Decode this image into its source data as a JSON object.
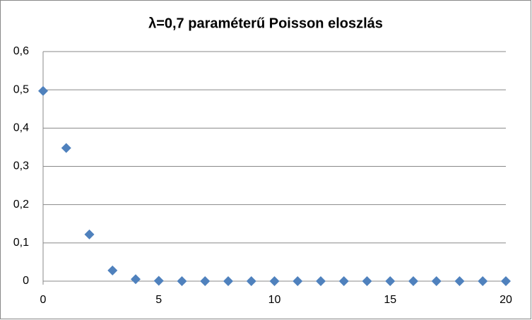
{
  "chart_data": {
    "type": "scatter",
    "title": "λ=0,7 paraméterű Poisson eloszlás",
    "x": [
      0,
      1,
      2,
      3,
      4,
      5,
      6,
      7,
      8,
      9,
      10,
      11,
      12,
      13,
      14,
      15,
      16,
      17,
      18,
      19,
      20
    ],
    "values": [
      0.497,
      0.348,
      0.122,
      0.028,
      0.005,
      0.001,
      0,
      0,
      0,
      0,
      0,
      0,
      0,
      0,
      0,
      0,
      0,
      0,
      0,
      0,
      0
    ],
    "color": "#4f81bd",
    "marker": "diamond",
    "xlim": [
      0,
      20
    ],
    "xticks": [
      0,
      5,
      10,
      15,
      20
    ],
    "ylim": [
      0,
      0.6
    ],
    "yticks": [
      0,
      {
        "value": 0.1,
        "label": "0,1"
      },
      {
        "value": 0.2,
        "label": "0,2"
      },
      {
        "value": 0.3,
        "label": "0,3"
      },
      {
        "value": 0.4,
        "label": "0,4"
      },
      {
        "value": 0.5,
        "label": "0,5"
      },
      {
        "value": 0.6,
        "label": "0,6"
      }
    ],
    "grid": true
  }
}
